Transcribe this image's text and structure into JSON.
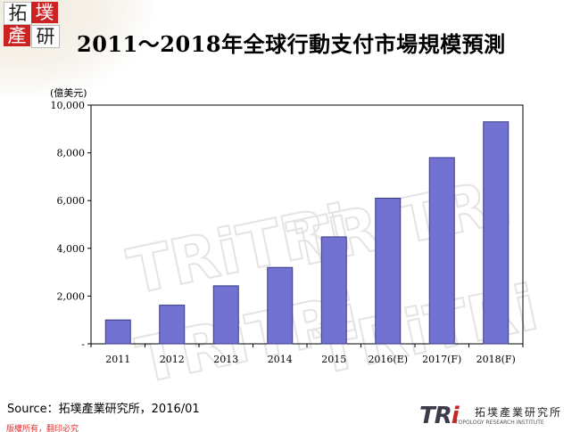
{
  "title": "2011～2018年全球行動支付市場規模預測",
  "logo": {
    "chars": [
      "拓",
      "墣",
      "產",
      "研"
    ]
  },
  "chart_data": {
    "type": "bar",
    "ylabel": "(億美元)",
    "categories": [
      "2011",
      "2012",
      "2013",
      "2014",
      "2015",
      "2016(E)",
      "2017(F)",
      "2018(F)"
    ],
    "values": [
      1000,
      1620,
      2430,
      3200,
      4480,
      6100,
      7800,
      9300
    ],
    "ylim": [
      0,
      10000
    ],
    "yticks": [
      {
        "value": 0,
        "label": "-"
      },
      {
        "value": 2000,
        "label": "2,000"
      },
      {
        "value": 4000,
        "label": "4,000"
      },
      {
        "value": 6000,
        "label": "6,000"
      },
      {
        "value": 8000,
        "label": "8,000"
      },
      {
        "value": 10000,
        "label": "10,000"
      }
    ],
    "grid": false,
    "bar_color": "#7272d2",
    "bar_edge_color": "#3a3a82"
  },
  "source": "Source：拓墣產業研究所，2016/01",
  "rights": "版權所有，翻印必究",
  "footer_logo": {
    "mark": "TR",
    "mark_accent": "i",
    "name": "拓墣產業研究所",
    "english": "TOPOLOGY RESEARCH INSTITUTE"
  }
}
